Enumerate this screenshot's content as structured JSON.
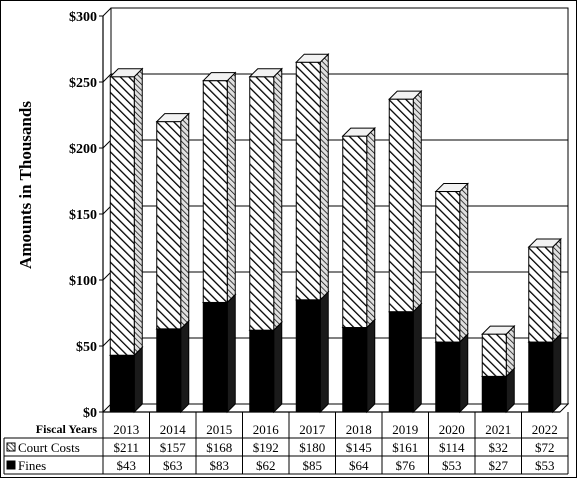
{
  "chart_data": {
    "type": "bar",
    "stacked": true,
    "three_d": true,
    "ylabel": "Amounts in Thousands",
    "ylim": [
      0,
      300
    ],
    "yticks": [
      {
        "value": 0,
        "label": "$0"
      },
      {
        "value": 50,
        "label": "$50"
      },
      {
        "value": 100,
        "label": "$100"
      },
      {
        "value": 150,
        "label": "$150"
      },
      {
        "value": 200,
        "label": "$200"
      },
      {
        "value": 250,
        "label": "$250"
      },
      {
        "value": 300,
        "label": "$300"
      }
    ],
    "grid": true,
    "table_header": "Fiscal Years",
    "categories": [
      "2013",
      "2014",
      "2015",
      "2016",
      "2017",
      "2018",
      "2019",
      "2020",
      "2021",
      "2022"
    ],
    "series": [
      {
        "name": "Fines",
        "values": [
          43,
          63,
          83,
          62,
          85,
          64,
          76,
          53,
          27,
          53
        ],
        "labels": [
          "$43",
          "$63",
          "$83",
          "$62",
          "$85",
          "$64",
          "$76",
          "$53",
          "$27",
          "$53"
        ],
        "color": "#000000",
        "pattern": "solid"
      },
      {
        "name": "Court Costs",
        "values": [
          211,
          157,
          168,
          192,
          180,
          145,
          161,
          114,
          32,
          72
        ],
        "labels": [
          "$211",
          "$157",
          "$168",
          "$192",
          "$180",
          "$145",
          "$161",
          "$114",
          "$32",
          "$72"
        ],
        "color": "#ffffff",
        "pattern": "diagonal-hatch"
      }
    ]
  }
}
